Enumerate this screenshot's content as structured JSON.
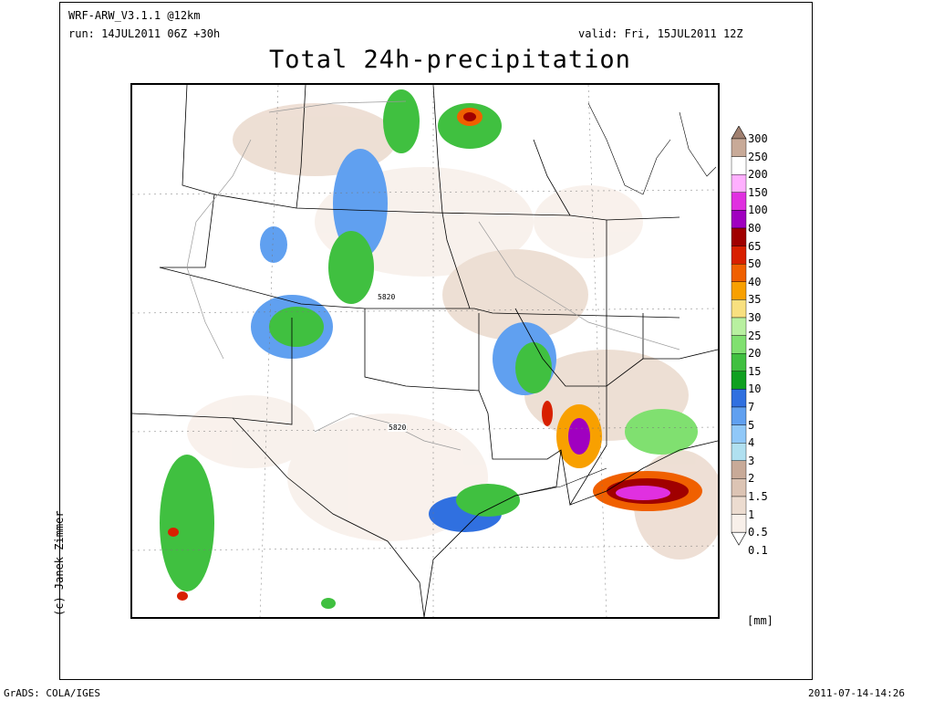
{
  "header": {
    "model": "WRF-ARW_V3.1.1 @12km",
    "run": "run: 14JUL2011 06Z +30h",
    "valid": "valid: Fri, 15JUL2011 12Z"
  },
  "title": "Total 24h-precipitation",
  "credit": "(c) Janek Zimmer",
  "contour_labels": [
    "5820",
    "5820"
  ],
  "legend": {
    "unit": "[mm]",
    "levels": [
      {
        "label": "300",
        "color": "#a08070"
      },
      {
        "label": "250",
        "color": "#c8aa98"
      },
      {
        "label": "200",
        "color": "#ffffff"
      },
      {
        "label": "150",
        "color": "#ffb0ff"
      },
      {
        "label": "100",
        "color": "#e030e0"
      },
      {
        "label": "80",
        "color": "#a000c0"
      },
      {
        "label": "65",
        "color": "#a00000"
      },
      {
        "label": "50",
        "color": "#d82000"
      },
      {
        "label": "40",
        "color": "#f06000"
      },
      {
        "label": "35",
        "color": "#f8a000"
      },
      {
        "label": "30",
        "color": "#f8e080"
      },
      {
        "label": "25",
        "color": "#b8f0a0"
      },
      {
        "label": "20",
        "color": "#80e070"
      },
      {
        "label": "15",
        "color": "#40c040"
      },
      {
        "label": "10",
        "color": "#10a020"
      },
      {
        "label": "7",
        "color": "#3070e0"
      },
      {
        "label": "5",
        "color": "#60a0f0"
      },
      {
        "label": "4",
        "color": "#90c8f8"
      },
      {
        "label": "3",
        "color": "#b0e0f0"
      },
      {
        "label": "2",
        "color": "#c8aa98"
      },
      {
        "label": "1.5",
        "color": "#dcc4b4"
      },
      {
        "label": "1",
        "color": "#ecdcd0"
      },
      {
        "label": "0.5",
        "color": "#f8f0ea"
      },
      {
        "label": "0.1",
        "color": "#ffffff"
      }
    ]
  },
  "footer": {
    "left": "GrADS: COLA/IGES",
    "right": "2011-07-14-14:26"
  }
}
